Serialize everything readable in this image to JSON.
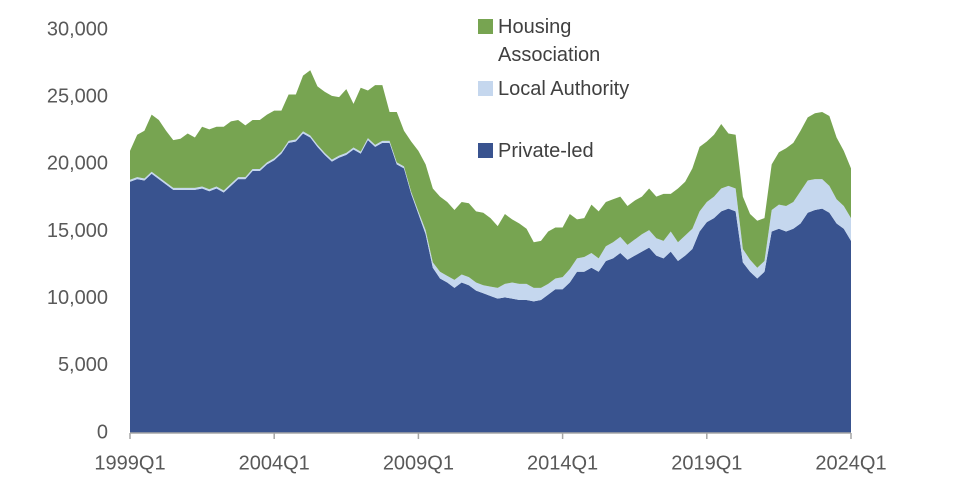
{
  "chart_data": {
    "type": "stacked-area",
    "categories": [
      "1999Q1",
      null,
      null,
      null,
      null,
      null,
      null,
      null,
      null,
      null,
      null,
      null,
      null,
      null,
      null,
      null,
      null,
      null,
      null,
      null,
      "2004Q1",
      null,
      null,
      null,
      null,
      null,
      null,
      null,
      null,
      null,
      null,
      null,
      null,
      null,
      null,
      null,
      null,
      null,
      null,
      null,
      "2009Q1",
      null,
      null,
      null,
      null,
      null,
      null,
      null,
      null,
      null,
      null,
      null,
      null,
      null,
      null,
      null,
      null,
      null,
      null,
      null,
      "2014Q1",
      null,
      null,
      null,
      null,
      null,
      null,
      null,
      null,
      null,
      null,
      null,
      null,
      null,
      null,
      null,
      null,
      null,
      null,
      null,
      "2019Q1",
      null,
      null,
      null,
      null,
      null,
      null,
      null,
      null,
      null,
      null,
      null,
      null,
      null,
      null,
      null,
      null,
      null,
      null,
      null,
      "2024Q1"
    ],
    "series": [
      {
        "name": "Private-led",
        "color": "#39538f",
        "values": [
          18700,
          18900,
          18800,
          19300,
          18900,
          18500,
          18100,
          18100,
          18100,
          18100,
          18200,
          18000,
          18200,
          17900,
          18400,
          18900,
          18900,
          19500,
          19500,
          20000,
          20300,
          20800,
          21600,
          21700,
          22300,
          22000,
          21300,
          20700,
          20200,
          20500,
          20700,
          21100,
          20800,
          21800,
          21300,
          21600,
          21600,
          20000,
          19700,
          17800,
          16300,
          14800,
          12300,
          11500,
          11200,
          10800,
          11200,
          11000,
          10600,
          10400,
          10200,
          10000,
          10100,
          10000,
          9900,
          9900,
          9800,
          9900,
          10300,
          10700,
          10700,
          11200,
          12000,
          12000,
          12300,
          12000,
          12800,
          13000,
          13400,
          12900,
          13200,
          13500,
          13800,
          13200,
          13000,
          13500,
          12800,
          13200,
          13700,
          15000,
          15700,
          16000,
          16500,
          16700,
          16500,
          12700,
          12000,
          11500,
          12000,
          15000,
          15200,
          15000,
          15200,
          15600,
          16400,
          16600,
          16700,
          16400,
          15600,
          15200,
          14300
        ]
      },
      {
        "name": "Local Authority",
        "color": "#c5d7ee",
        "values": [
          150,
          150,
          150,
          150,
          150,
          150,
          150,
          150,
          150,
          150,
          150,
          150,
          150,
          150,
          150,
          150,
          150,
          150,
          150,
          150,
          150,
          150,
          150,
          150,
          150,
          150,
          150,
          150,
          150,
          150,
          150,
          150,
          150,
          150,
          150,
          150,
          150,
          150,
          150,
          150,
          200,
          300,
          400,
          500,
          500,
          600,
          600,
          600,
          600,
          600,
          700,
          800,
          1000,
          1200,
          1200,
          1200,
          1000,
          900,
          800,
          800,
          900,
          1000,
          1000,
          1100,
          1100,
          1000,
          1100,
          1200,
          1200,
          1100,
          1200,
          1300,
          1300,
          1300,
          1300,
          1500,
          1400,
          1500,
          1500,
          1500,
          1500,
          1600,
          1700,
          1700,
          1700,
          1000,
          900,
          800,
          800,
          1600,
          1800,
          1900,
          2000,
          2400,
          2400,
          2300,
          2200,
          2000,
          1800,
          1700,
          1700
        ]
      },
      {
        "name": "Housing Association",
        "color": "#77a451",
        "values": [
          2150,
          3150,
          3550,
          4250,
          4250,
          3850,
          3550,
          3650,
          4050,
          3750,
          4450,
          4450,
          4450,
          4750,
          4650,
          4250,
          3850,
          3650,
          3650,
          3550,
          3550,
          3050,
          3450,
          3350,
          4150,
          4850,
          4350,
          4550,
          4750,
          4350,
          4750,
          3250,
          4750,
          3550,
          4450,
          4150,
          2150,
          3750,
          2650,
          3750,
          4500,
          4900,
          5500,
          5600,
          5500,
          5200,
          5400,
          5500,
          5300,
          5400,
          5100,
          4600,
          5200,
          4700,
          4500,
          4100,
          3400,
          3500,
          3900,
          3800,
          3700,
          4100,
          2900,
          2900,
          3600,
          3500,
          3300,
          3200,
          3000,
          2900,
          2900,
          2800,
          3100,
          3100,
          3500,
          2800,
          4000,
          4000,
          4500,
          4800,
          4500,
          4600,
          4800,
          3900,
          4000,
          3900,
          3400,
          3500,
          3200,
          3400,
          3900,
          4300,
          4400,
          4500,
          4700,
          4900,
          5000,
          5200,
          4600,
          4100,
          3700
        ]
      }
    ],
    "ylim": [
      0,
      30000
    ],
    "yticks": [
      0,
      {
        "value": 5000,
        "label": "5,000"
      },
      {
        "value": 10000,
        "label": "10,000"
      },
      {
        "value": 15000,
        "label": "15,000"
      },
      {
        "value": 20000,
        "label": "20,000"
      },
      {
        "value": 25000,
        "label": "25,000"
      },
      {
        "value": 30000,
        "label": "30,000"
      }
    ],
    "grid": false
  }
}
